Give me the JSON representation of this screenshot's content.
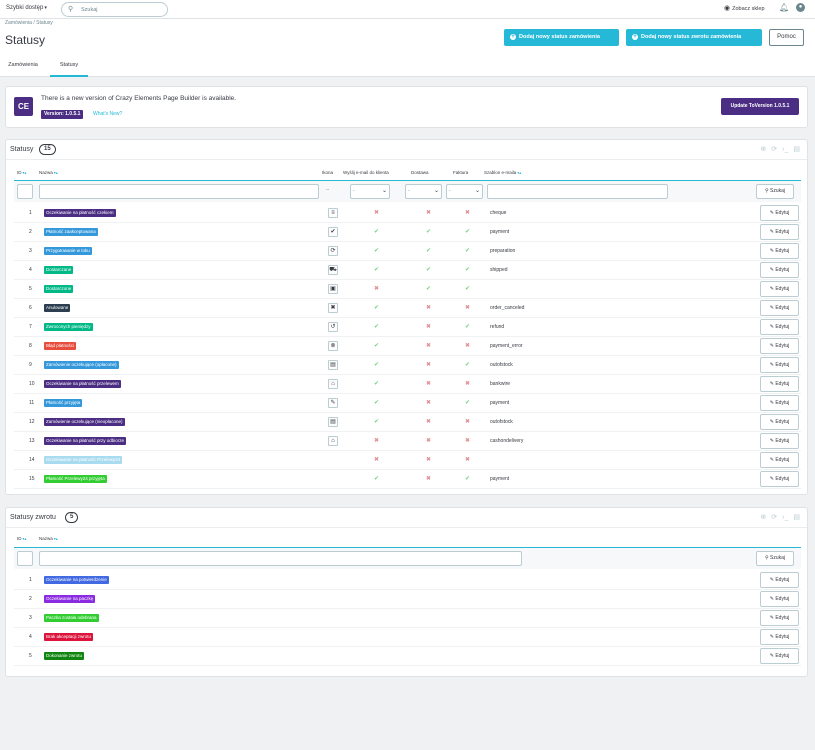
{
  "topbar": {
    "quick_access": "Szybki dostęp",
    "search_placeholder": "Szukaj",
    "view_shop": "Zobacz sklep"
  },
  "header": {
    "breadcrumb": "Zamówienia  /  Statusy",
    "title": "Statusy",
    "btn_add_status": "Dodaj nowy status zamówienia",
    "btn_add_return_status": "Dodaj nowy status zwrotu zamówienia",
    "btn_help": "Pomoc",
    "tabs": [
      {
        "label": "Zamówienia"
      },
      {
        "label": "Statusy"
      }
    ]
  },
  "notice": {
    "logo": "CE",
    "text": "There is a new version of Crazy Elements Page Builder is available.",
    "version": "Version: 1.0.5.1",
    "whats_new": "What's New?",
    "update_button": "Update ToVersion 1.0.5.1"
  },
  "statuses": {
    "title": "Statusy",
    "count": "15",
    "columns": {
      "id": "ID",
      "name": "Nazwa",
      "icon": "Ikona",
      "send_email": "Wyślij e-mail do klienta",
      "delivery": "Dostawa",
      "invoice": "Faktura",
      "template": "Szablon e-maila"
    },
    "filter_dash": "--",
    "filter_select": "-",
    "search_button": "Szukaj",
    "edit_label": "Edytuj",
    "rows": [
      {
        "id": "1",
        "name": "Oczekiwanie na płatność czekiem",
        "color": "#4b2e83",
        "icon": "≡",
        "send": false,
        "delivery": false,
        "invoice": false,
        "template": "cheque"
      },
      {
        "id": "2",
        "name": "Płatność zaakceptowana",
        "color": "#3498db",
        "icon": "✔",
        "send": true,
        "delivery": true,
        "invoice": true,
        "template": "payment"
      },
      {
        "id": "3",
        "name": "Przygotowanie w toku",
        "color": "#3498db",
        "icon": "⟳",
        "send": true,
        "delivery": true,
        "invoice": true,
        "template": "preparation"
      },
      {
        "id": "4",
        "name": "Dostarczane",
        "color": "#01b887",
        "icon": "⛟",
        "send": true,
        "delivery": true,
        "invoice": true,
        "template": "shipped"
      },
      {
        "id": "5",
        "name": "Dostarczone",
        "color": "#01b887",
        "icon": "▣",
        "send": false,
        "delivery": true,
        "invoice": true,
        "template": ""
      },
      {
        "id": "6",
        "name": "Anulowane",
        "color": "#2c3e50",
        "icon": "✖",
        "send": true,
        "delivery": false,
        "invoice": false,
        "template": "order_canceled"
      },
      {
        "id": "7",
        "name": "Zwroconych pieniędzy",
        "color": "#01b887",
        "icon": "↺",
        "send": true,
        "delivery": false,
        "invoice": true,
        "template": "refund"
      },
      {
        "id": "8",
        "name": "Błąd płatności",
        "color": "#e74c3c",
        "icon": "⊗",
        "send": true,
        "delivery": false,
        "invoice": false,
        "template": "payment_error"
      },
      {
        "id": "9",
        "name": "Zamówienie oczekujące (opłacone)",
        "color": "#3498db",
        "icon": "▤",
        "send": true,
        "delivery": false,
        "invoice": true,
        "template": "outofstock"
      },
      {
        "id": "10",
        "name": "Oczekiwanie na płatność przelewem",
        "color": "#4b2e83",
        "icon": "⌂",
        "send": true,
        "delivery": false,
        "invoice": false,
        "template": "bankwire"
      },
      {
        "id": "11",
        "name": "Płatność przyjęta",
        "color": "#3498db",
        "icon": "✎",
        "send": true,
        "delivery": false,
        "invoice": true,
        "template": "payment"
      },
      {
        "id": "12",
        "name": "Zamówienie oczekujące (nieopłacone)",
        "color": "#4b2e83",
        "icon": "▤",
        "send": true,
        "delivery": false,
        "invoice": false,
        "template": "outofstock"
      },
      {
        "id": "13",
        "name": "Oczekiwanie na płatność przy odbiorze",
        "color": "#4b2e83",
        "icon": "⌂",
        "send": false,
        "delivery": false,
        "invoice": false,
        "template": "cashondelivery"
      },
      {
        "id": "14",
        "name": "Oczekiwanie na płatność Przelewy24",
        "color": "#a9dbf0",
        "icon": "",
        "send": false,
        "delivery": false,
        "invoice": false,
        "template": ""
      },
      {
        "id": "15",
        "name": "Płatność Przelewy24 przyjęta",
        "color": "#32cd32",
        "icon": "",
        "send": true,
        "delivery": false,
        "invoice": true,
        "template": "payment"
      }
    ]
  },
  "returns": {
    "title": "Statusy zwrotu",
    "count": "5",
    "columns": {
      "id": "ID",
      "name": "Nazwa"
    },
    "search_button": "Szukaj",
    "edit_label": "Edytuj",
    "rows": [
      {
        "id": "1",
        "name": "Oczekiwanie na potwierdzenie",
        "color": "#4169e1"
      },
      {
        "id": "2",
        "name": "Oczekiwanie na paczkę",
        "color": "#8a2be2"
      },
      {
        "id": "3",
        "name": "Paczka została odebrana",
        "color": "#32cd32"
      },
      {
        "id": "4",
        "name": "Brak akceptacji zwrotu",
        "color": "#dc143c"
      },
      {
        "id": "5",
        "name": "Dokonanie zwrotu",
        "color": "#108510"
      }
    ]
  },
  "colors": {
    "accent": "#25b9d7",
    "brand_ce": "#4b2e83",
    "yes": "#78d07d",
    "no": "#e08f95"
  }
}
